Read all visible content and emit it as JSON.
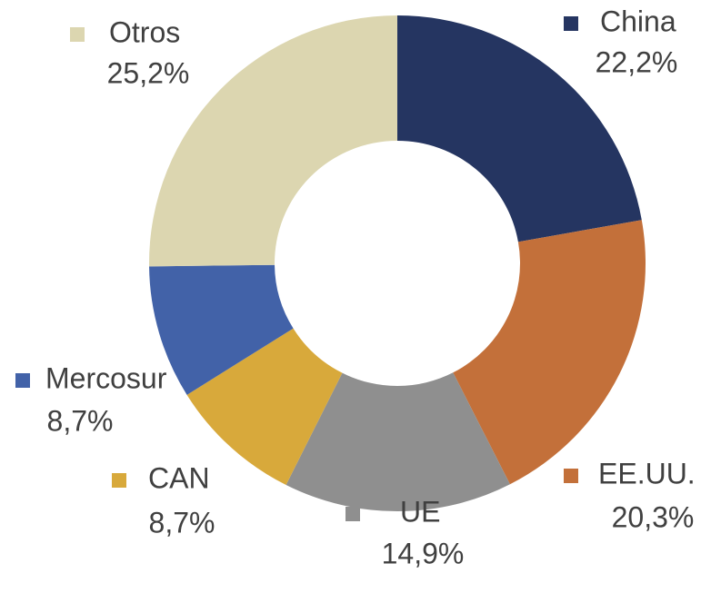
{
  "chart_data": {
    "type": "donut",
    "categories": [
      "China",
      "EE.UU.",
      "UE",
      "CAN",
      "Mercosur",
      "Otros"
    ],
    "values": [
      22.2,
      20.3,
      14.9,
      8.7,
      8.7,
      25.2
    ],
    "value_labels": [
      "22,2%",
      "20,3%",
      "14,9%",
      "8,7%",
      "8,7%",
      "25,2%"
    ],
    "colors": [
      "#253561",
      "#c3703a",
      "#8f8f8f",
      "#d8a93b",
      "#4262a8",
      "#dcd6b0"
    ]
  }
}
